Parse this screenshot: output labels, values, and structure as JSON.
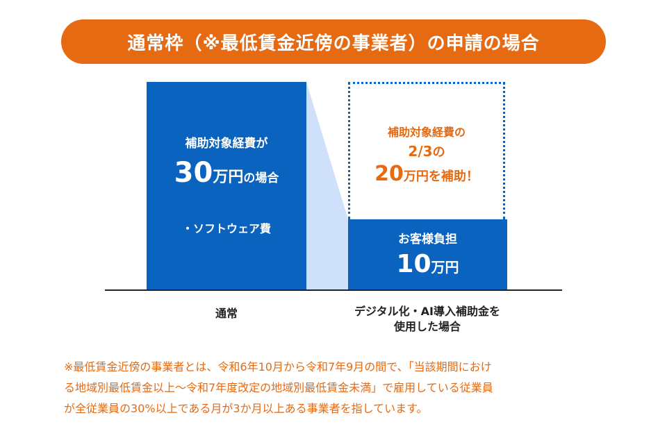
{
  "title": "通常枠（※最低賃金近傍の事業者）の申請の場合",
  "left_bar": {
    "line1": "補助対象経費が",
    "amount_number": "30",
    "amount_unit": "万円",
    "amount_suffix": "の場合",
    "item": "・ソフトウェア費"
  },
  "right_subsidy": {
    "line1": "補助対象経費の",
    "ratio": "2/3",
    "ratio_suffix": "の",
    "amount_number": "20",
    "amount_unit": "万円",
    "amount_suffix": "を補助！"
  },
  "right_customer": {
    "label": "お客様負担",
    "amount_number": "10",
    "amount_unit": "万円"
  },
  "x_labels": {
    "left": "通常",
    "right_line1": "デジタル化・AI導入補助金を",
    "right_line2": "使用した場合"
  },
  "footnote": {
    "line1": "※最低賃金近傍の事業者とは、令和6年10月から令和7年9月の間で、「当該期間におけ",
    "line2": "る地域別最低賃金以上～令和7年度改定の地域別最低賃金未満」で雇用している従業員",
    "line3": "が全従業員の30%以上である月が3か月以上ある事業者を指しています。"
  },
  "colors": {
    "accent_orange": "#e56a12",
    "bar_blue": "#0b63c0",
    "wedge_light_blue": "#cfe0fb"
  }
}
